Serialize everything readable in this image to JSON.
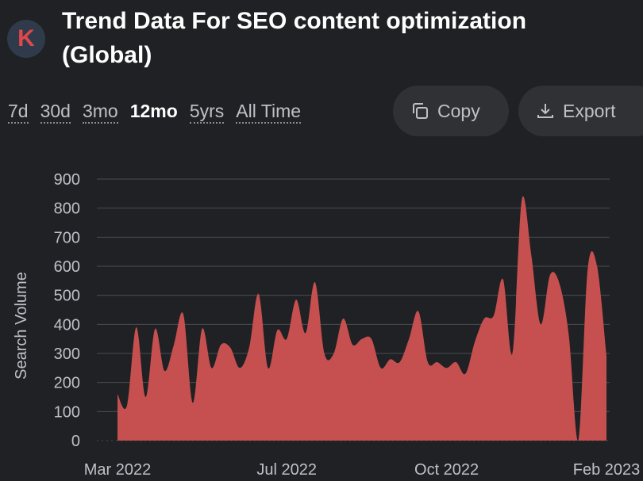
{
  "logo": {
    "letter": "K",
    "color": "#e0474a"
  },
  "title": "Trend Data For SEO content optimization (Global)",
  "time_ranges": [
    {
      "label": "7d",
      "active": false
    },
    {
      "label": "30d",
      "active": false
    },
    {
      "label": "3mo",
      "active": false
    },
    {
      "label": "12mo",
      "active": true
    },
    {
      "label": "5yrs",
      "active": false
    },
    {
      "label": "All Time",
      "active": false
    }
  ],
  "buttons": {
    "copy": {
      "label": "Copy",
      "icon": "copy-icon"
    },
    "export": {
      "label": "Export",
      "icon": "export-icon"
    }
  },
  "colors": {
    "background": "#202124",
    "area_fill": "#c5504f",
    "grid": "#4a4c50"
  },
  "chart_data": {
    "type": "area",
    "ylabel": "Search Volume",
    "ylim": [
      0,
      900
    ],
    "yticks": [
      0,
      100,
      200,
      300,
      400,
      500,
      600,
      700,
      800,
      900
    ],
    "x_tick_labels": [
      "Mar 2022",
      "Jul 2022",
      "Oct 2022",
      "Feb 2023"
    ],
    "x_tick_index": [
      0,
      18,
      35,
      52
    ],
    "grid": true,
    "series": [
      {
        "values": [
          160,
          120,
          390,
          150,
          385,
          240,
          330,
          435,
          130,
          385,
          250,
          330,
          320,
          250,
          320,
          505,
          250,
          380,
          350,
          485,
          370,
          545,
          300,
          300,
          420,
          330,
          350,
          350,
          250,
          280,
          270,
          350,
          445,
          270,
          270,
          250,
          270,
          230,
          340,
          420,
          430,
          555,
          300,
          830,
          640,
          400,
          570,
          540,
          360,
          0,
          590,
          600,
          290
        ]
      }
    ]
  }
}
